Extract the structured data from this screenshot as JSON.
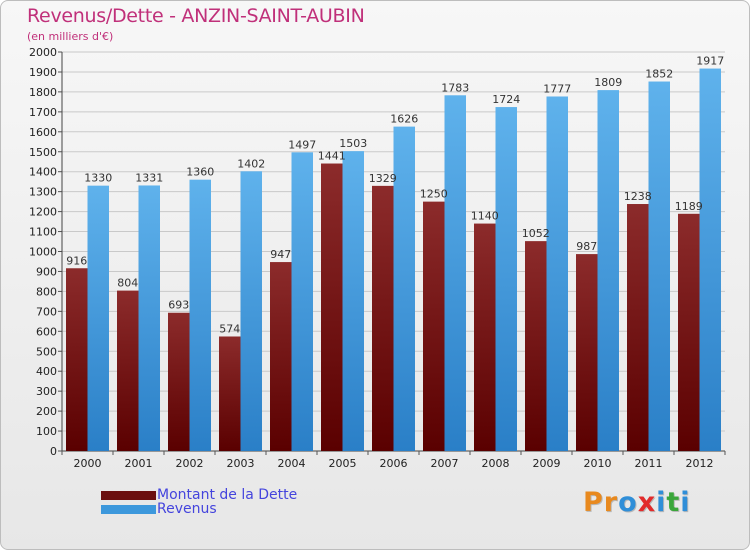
{
  "header": {
    "title": "Revenus/Dette - ANZIN-SAINT-AUBIN",
    "subtitle": "(en milliers d'€)"
  },
  "legend": {
    "items": [
      {
        "label": "Montant de la Dette",
        "color": "#6b0f0f"
      },
      {
        "label": "Revenus",
        "color": "#3d98dc"
      }
    ]
  },
  "logo": {
    "text": "Proxiti",
    "letters": [
      "P",
      "r",
      "o",
      "x",
      "i",
      "t",
      "i"
    ]
  },
  "colors": {
    "debt_dark": "#5a0000",
    "debt_light": "#8c2b2b",
    "revenue_dark": "#2a7fc7",
    "revenue_light": "#5fb2ec",
    "title": "#c0307a",
    "legend_text": "#4444dd",
    "logo_letters": [
      "#e8891e",
      "#e8891e",
      "#2f8ed8",
      "#e22b2b",
      "#2f8ed8",
      "#3aa63a",
      "#2f8ed8"
    ]
  },
  "chart_data": {
    "type": "bar",
    "title": "Revenus/Dette - ANZIN-SAINT-AUBIN",
    "subtitle": "(en milliers d'€)",
    "categories": [
      "2000",
      "2001",
      "2002",
      "2003",
      "2004",
      "2005",
      "2006",
      "2007",
      "2008",
      "2009",
      "2010",
      "2011",
      "2012"
    ],
    "series": [
      {
        "name": "Montant de la Dette",
        "values": [
          916,
          804,
          693,
          574,
          947,
          1441,
          1329,
          1250,
          1140,
          1052,
          987,
          1238,
          1189
        ]
      },
      {
        "name": "Revenus",
        "values": [
          1330,
          1331,
          1360,
          1402,
          1497,
          1503,
          1626,
          1783,
          1724,
          1777,
          1809,
          1852,
          1917
        ]
      }
    ],
    "data_labels": {
      "debt": [
        "916",
        "804",
        "693",
        "574",
        "947",
        "1441",
        "1329",
        "1250",
        "1140",
        "1052",
        "987",
        "1238",
        "1189"
      ],
      "revenue": [
        "1330",
        "1331",
        "1360",
        "1402",
        "1497",
        "1503",
        "1626",
        "1783",
        "1724",
        "1777",
        "1809",
        "1852",
        "1917"
      ]
    },
    "yticks": [
      0,
      100,
      200,
      300,
      400,
      500,
      600,
      700,
      800,
      900,
      1000,
      1100,
      1200,
      1300,
      1400,
      1500,
      1600,
      1700,
      1800,
      1900,
      2000
    ],
    "ylim": [
      0,
      2000
    ],
    "xlabel": "",
    "ylabel": "",
    "grid": true,
    "legend_position": "bottom-left"
  }
}
